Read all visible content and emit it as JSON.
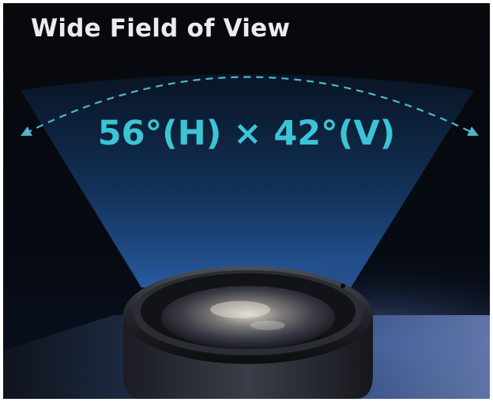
{
  "title": "Wide Field of View",
  "fov_label": "56°(H) × 42°(V)",
  "fov_values": {
    "horizontal_degrees": 56,
    "vertical_degrees": 42
  },
  "icons": {
    "arc": "double-arrow-arc-icon",
    "lens": "camera-lens-icon"
  },
  "colors": {
    "background": "#05070b",
    "title": "#e9edf2",
    "accent": "#3cc4d6",
    "beam": "#1a4c8a"
  }
}
